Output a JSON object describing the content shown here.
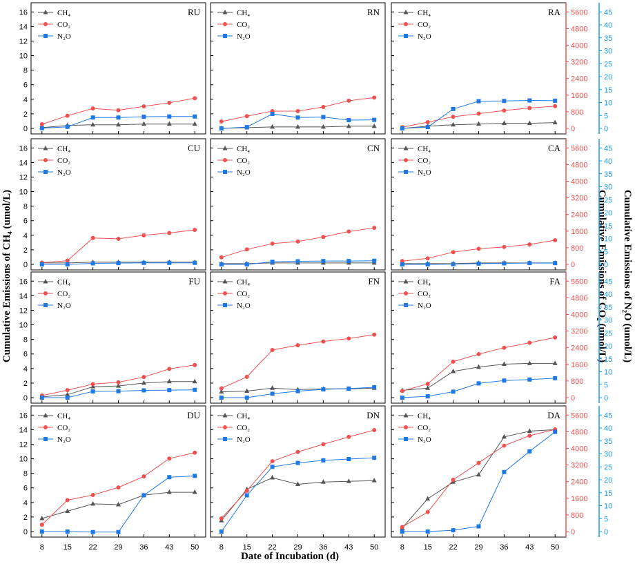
{
  "chart_data": {
    "type": "line",
    "title": "",
    "xlabel": "Date of Incubation (d)",
    "ylabel_left": "Cumulative Emissions of CH₄ (umol/L)",
    "ylabel_mid": "Cumulative Emissions of CO₂ (umol/L)",
    "ylabel_right": "Cumulative Emissions of N₂O (umol/L)",
    "x": [
      8,
      15,
      22,
      29,
      36,
      43,
      50
    ],
    "x_ticks": [
      "8",
      "15",
      "22",
      "29",
      "36",
      "43",
      "50"
    ],
    "ch4_ticks": [
      "0",
      "2",
      "4",
      "6",
      "8",
      "10",
      "12",
      "14",
      "16"
    ],
    "co2_ticks": [
      "0",
      "800",
      "1600",
      "2400",
      "3200",
      "4000",
      "4800",
      "5600"
    ],
    "n2o_ticks": [
      "0",
      "5",
      "10",
      "15",
      "20",
      "25",
      "30",
      "35",
      "40",
      "45"
    ],
    "ch4_ylim": [
      0,
      16.5
    ],
    "co2_ylim": [
      0,
      5775
    ],
    "n2o_ylim": [
      0,
      46.4
    ],
    "legend": [
      "CH₄",
      "CO₂",
      "N₂O"
    ],
    "colors": {
      "CH4": "#555555",
      "CO2": "#f05050",
      "N2O": "#1e78e6",
      "CO2_axis": "#f05050",
      "N2O_axis": "#1e9be6"
    },
    "panels": [
      {
        "label": "RU",
        "CH4": [
          0.1,
          0.4,
          0.5,
          0.5,
          0.6,
          0.6,
          0.6
        ],
        "CO2": [
          200,
          610,
          960,
          870,
          1060,
          1230,
          1450
        ],
        "N2O": [
          0.1,
          0.6,
          4.2,
          4.2,
          4.5,
          4.6,
          4.6
        ]
      },
      {
        "label": "RN",
        "CH4": [
          0.0,
          0.1,
          0.2,
          0.2,
          0.2,
          0.3,
          0.3
        ],
        "CO2": [
          330,
          590,
          830,
          830,
          1030,
          1330,
          1480
        ],
        "N2O": [
          0.0,
          0.5,
          5.6,
          4.2,
          4.4,
          3.2,
          3.3
        ]
      },
      {
        "label": "RA",
        "CH4": [
          0.0,
          0.3,
          0.5,
          0.6,
          0.7,
          0.7,
          0.8
        ],
        "CO2": [
          60,
          300,
          560,
          710,
          860,
          980,
          1070
        ],
        "N2O": [
          0.0,
          0.5,
          7.5,
          10.5,
          10.6,
          10.8,
          10.7
        ]
      },
      {
        "label": "CU",
        "CH4": [
          0.2,
          0.2,
          0.3,
          0.3,
          0.3,
          0.3,
          0.3
        ],
        "CO2": [
          80,
          180,
          1270,
          1230,
          1400,
          1510,
          1660
        ],
        "N2O": [
          0.0,
          0.0,
          0.4,
          0.5,
          0.6,
          0.6,
          0.6
        ]
      },
      {
        "label": "CN",
        "CH4": [
          0.1,
          0.1,
          0.2,
          0.2,
          0.2,
          0.2,
          0.2
        ],
        "CO2": [
          340,
          720,
          1000,
          1100,
          1320,
          1580,
          1760
        ],
        "N2O": [
          0.0,
          0.0,
          1.0,
          1.2,
          1.3,
          1.3,
          1.4
        ]
      },
      {
        "label": "CA",
        "CH4": [
          0.1,
          0.1,
          0.1,
          0.2,
          0.2,
          0.2,
          0.2
        ],
        "CO2": [
          160,
          290,
          590,
          750,
          840,
          960,
          1160
        ],
        "N2O": [
          0.0,
          0.0,
          0.1,
          0.3,
          0.4,
          0.5,
          0.5
        ]
      },
      {
        "label": "FU",
        "CH4": [
          0.1,
          0.4,
          1.5,
          1.6,
          2.0,
          2.2,
          2.2
        ],
        "CO2": [
          100,
          360,
          650,
          740,
          990,
          1380,
          1570
        ],
        "N2O": [
          0.0,
          0.0,
          2.4,
          2.5,
          2.8,
          2.9,
          3.0
        ]
      },
      {
        "label": "FN",
        "CH4": [
          0.8,
          0.9,
          1.3,
          1.1,
          1.2,
          1.2,
          1.3
        ],
        "CO2": [
          450,
          1000,
          2290,
          2520,
          2700,
          2840,
          3030
        ],
        "N2O": [
          0.0,
          0.0,
          1.5,
          2.5,
          3.2,
          3.5,
          4.0
        ]
      },
      {
        "label": "FA",
        "CH4": [
          1.0,
          1.3,
          3.6,
          4.2,
          4.6,
          4.7,
          4.7
        ],
        "CO2": [
          320,
          660,
          1730,
          2090,
          2400,
          2640,
          2890
        ],
        "N2O": [
          0.0,
          0.5,
          2.3,
          5.5,
          6.6,
          7.0,
          7.5
        ]
      },
      {
        "label": "DU",
        "CH4": [
          1.8,
          2.8,
          3.8,
          3.7,
          5.0,
          5.4,
          5.4
        ],
        "CO2": [
          330,
          1510,
          1760,
          2120,
          2650,
          3510,
          3790
        ],
        "N2O": [
          0.0,
          0.0,
          -0.2,
          -0.2,
          14.0,
          21.0,
          21.5
        ]
      },
      {
        "label": "DN",
        "CH4": [
          1.5,
          5.8,
          7.4,
          6.5,
          6.8,
          6.9,
          7.0
        ],
        "CO2": [
          630,
          1960,
          3380,
          3830,
          4200,
          4550,
          4880
        ],
        "N2O": [
          0.0,
          14.0,
          25.0,
          26.5,
          27.5,
          28.0,
          28.5
        ]
      },
      {
        "label": "DA",
        "CH4": [
          0.5,
          4.5,
          6.8,
          7.8,
          13.0,
          13.8,
          14.0
        ],
        "CO2": [
          220,
          940,
          2490,
          3300,
          4130,
          4610,
          4910
        ],
        "N2O": [
          0.0,
          0.0,
          0.5,
          2.0,
          23.0,
          31.0,
          38.5
        ]
      }
    ]
  }
}
